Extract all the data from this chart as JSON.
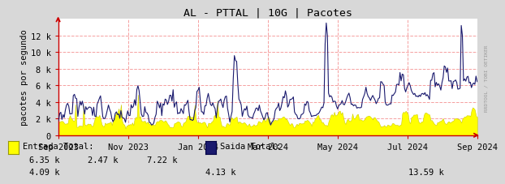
{
  "title": "AL - PTTAL | 10G | Pacotes",
  "ylabel": "pacotes por segundo",
  "background_color": "#d8d8d8",
  "plot_background_color": "#ffffff",
  "grid_color": "#f5a0a0",
  "entrada_color": "#ffff00",
  "entrada_edge_color": "#cccc00",
  "saida_color": "#1a1a6e",
  "axis_color": "#cc0000",
  "ylim": [
    0,
    14000
  ],
  "yticks": [
    0,
    2000,
    4000,
    6000,
    8000,
    10000,
    12000
  ],
  "ytick_labels": [
    "0",
    "2 k",
    "4 k",
    "6 k",
    "8 k",
    "10 k",
    "12 k"
  ],
  "legend_entrada_label": "Entrada Total:",
  "legend_saida_label": "Saida Total:",
  "legend_row1": [
    "6.35 k",
    "2.47 k",
    "7.22 k",
    "Saida Total:"
  ],
  "legend_row2": [
    "4.09 k",
    "",
    "",
    "4.13 k",
    "",
    "",
    "13.59 k"
  ],
  "watermark": "RRDTOOL / TOBI OETIKER",
  "x_tick_labels": [
    "Sep 2023",
    "Nov 2023",
    "Jan 2024",
    "Mar 2024",
    "May 2024",
    "Jul 2024",
    "Sep 2024"
  ],
  "n_points": 370,
  "seed": 42
}
